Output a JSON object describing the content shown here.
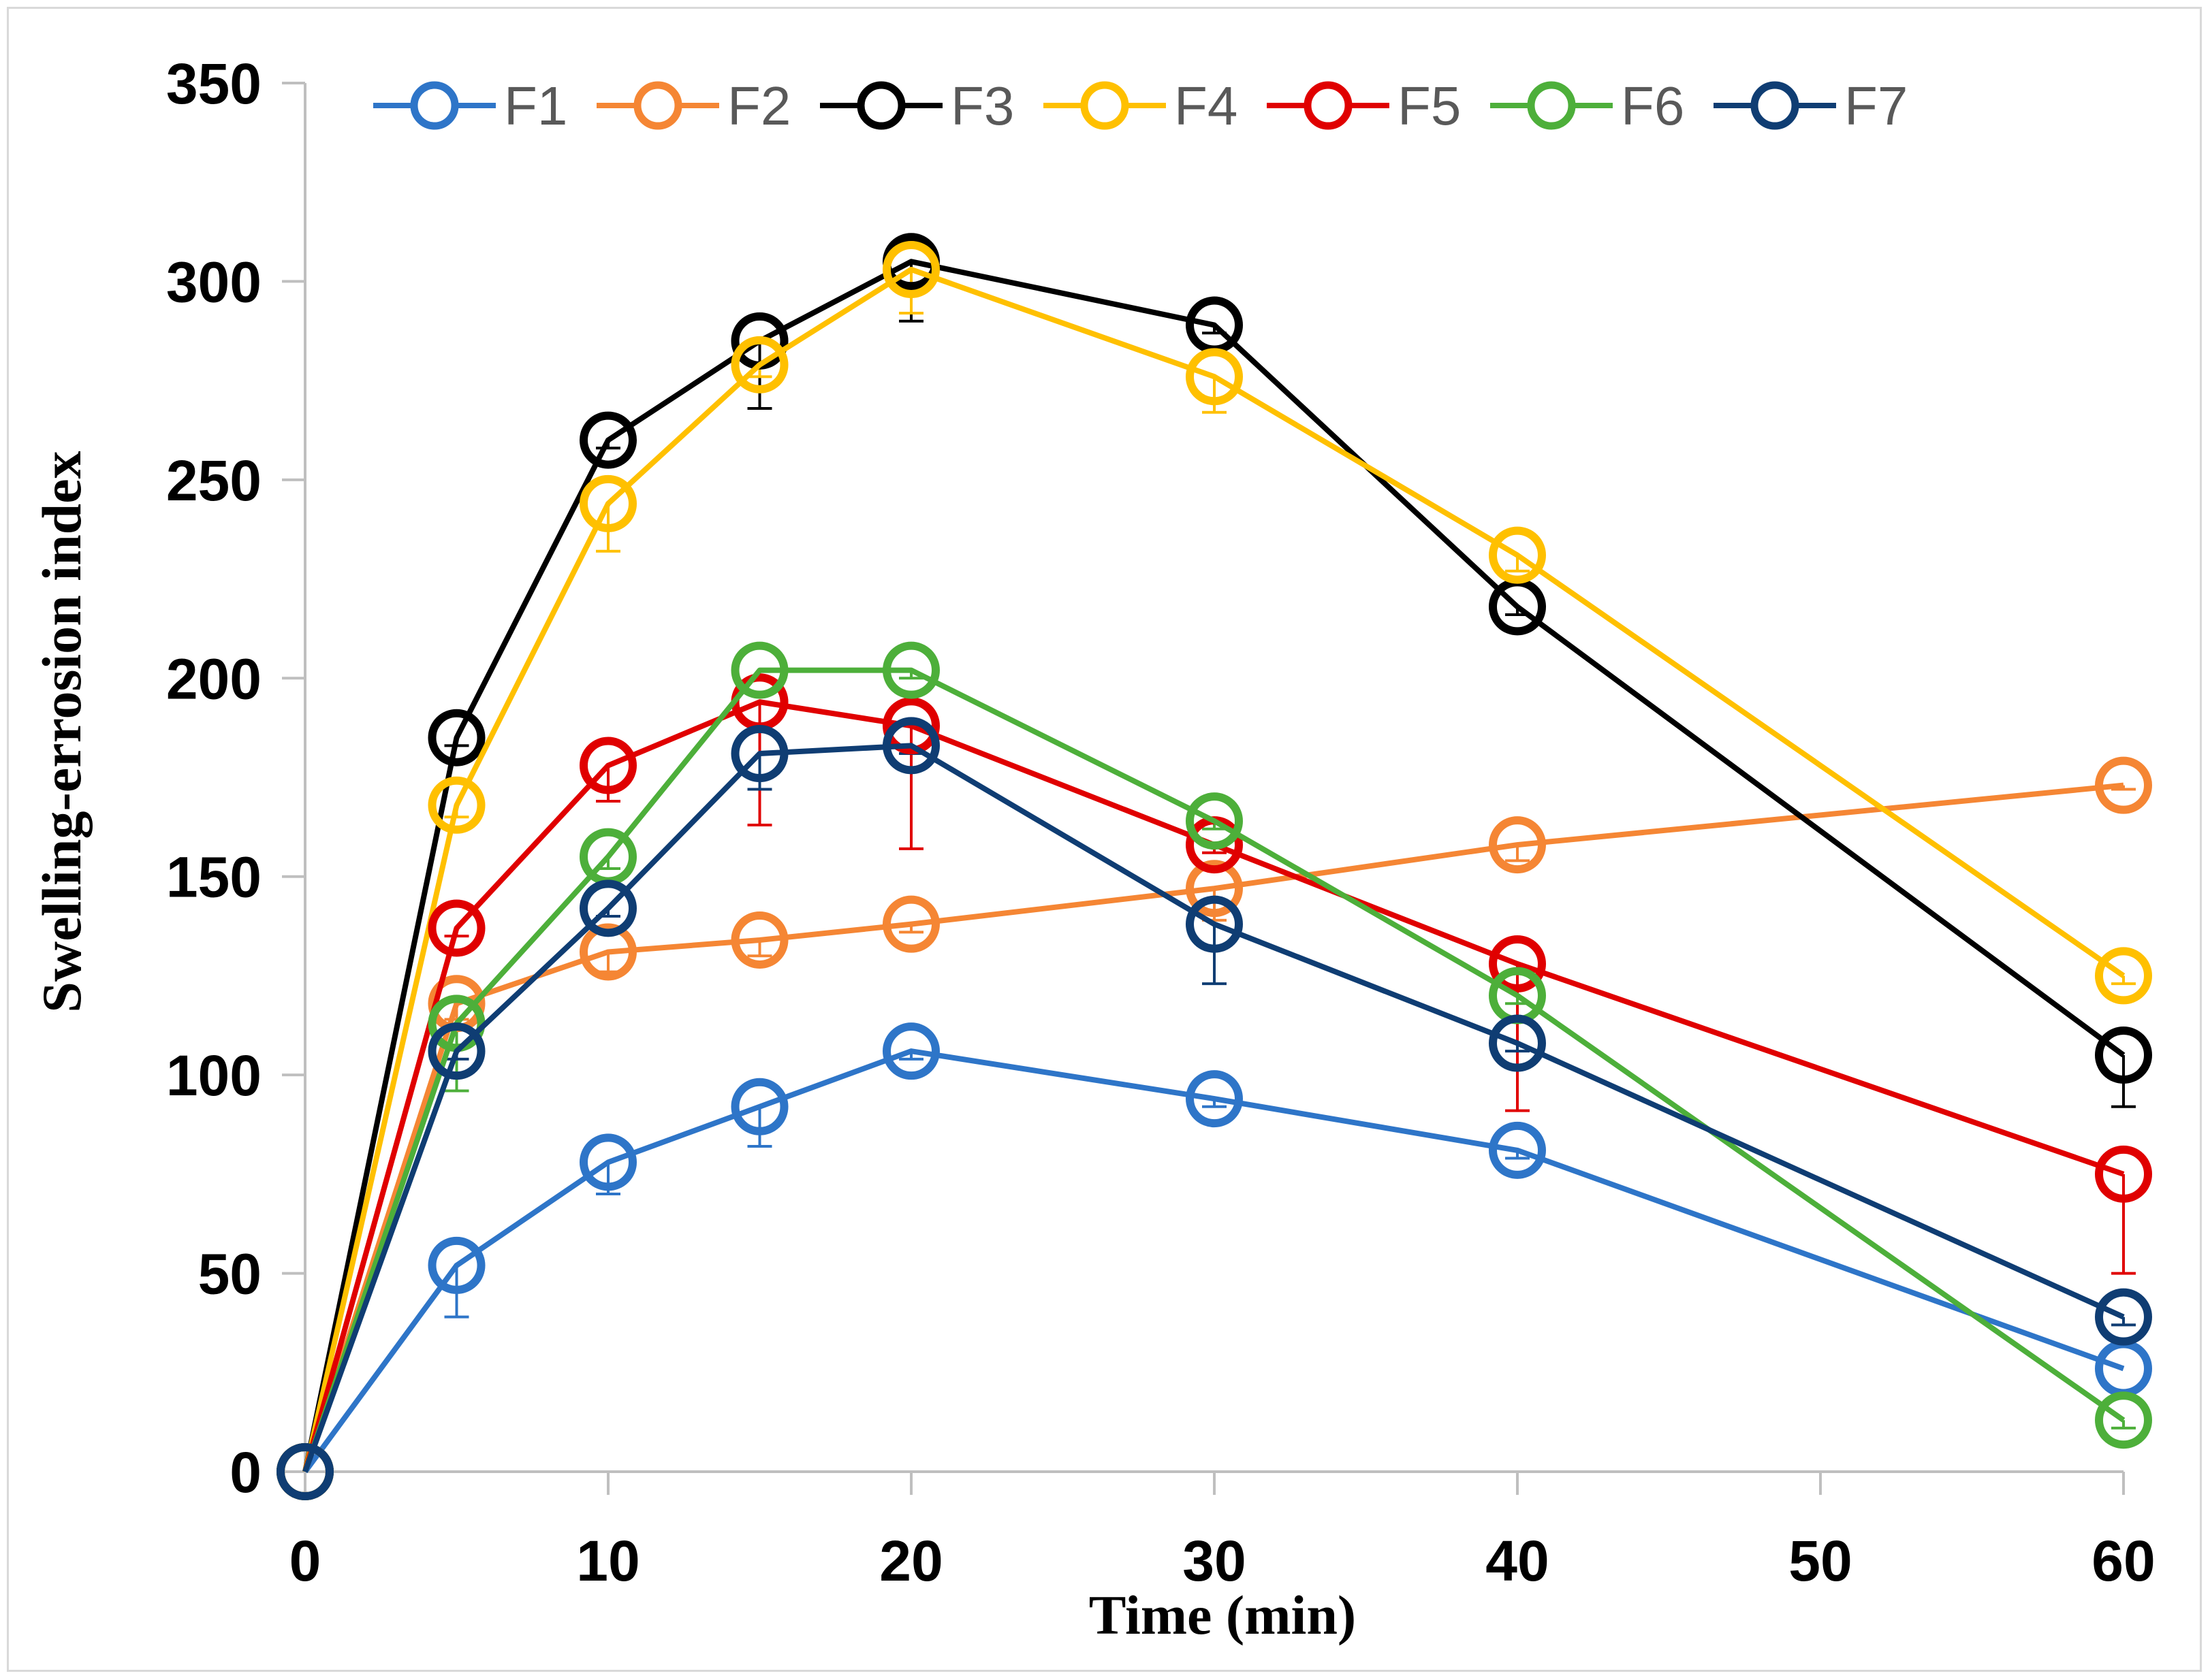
{
  "chart_data": {
    "type": "line",
    "title": "",
    "xlabel": "Time (min)",
    "ylabel": "Swelling-errosion index",
    "xlim": [
      0,
      60
    ],
    "ylim": [
      0,
      350
    ],
    "xticks": [
      0,
      10,
      20,
      30,
      40,
      50,
      60
    ],
    "yticks": [
      0,
      50,
      100,
      150,
      200,
      250,
      300,
      350
    ],
    "grid": false,
    "legend_position": "top",
    "x": [
      0,
      5,
      10,
      15,
      20,
      30,
      40,
      60
    ],
    "series": [
      {
        "name": "F1",
        "color": "#2e75c8",
        "values": [
          0,
          52,
          78,
          92,
          106,
          94,
          81,
          26
        ],
        "error": [
          0,
          13,
          8,
          10,
          2,
          2,
          2,
          0
        ]
      },
      {
        "name": "F2",
        "color": "#f58634",
        "values": [
          0,
          118,
          131,
          134,
          138,
          147,
          158,
          173
        ],
        "error": [
          0,
          4,
          5,
          4,
          2,
          8,
          4,
          1
        ]
      },
      {
        "name": "F3",
        "color": "#000000",
        "values": [
          0,
          185,
          260,
          285,
          305,
          289,
          218,
          105
        ],
        "error": [
          0,
          2,
          2,
          17,
          15,
          2,
          2,
          13
        ]
      },
      {
        "name": "F4",
        "color": "#ffc000",
        "values": [
          0,
          168,
          244,
          279,
          303,
          276,
          231,
          125
        ],
        "error": [
          0,
          3,
          12,
          3,
          11,
          9,
          4,
          2
        ]
      },
      {
        "name": "F5",
        "color": "#e00000",
        "values": [
          0,
          137,
          178,
          194,
          188,
          158,
          128,
          75
        ],
        "error": [
          0,
          2,
          9,
          31,
          31,
          2,
          37,
          25
        ]
      },
      {
        "name": "F6",
        "color": "#4daf3a",
        "values": [
          0,
          113,
          155,
          202,
          202,
          164,
          120,
          13
        ],
        "error": [
          0,
          17,
          3,
          2,
          2,
          2,
          2,
          2
        ]
      },
      {
        "name": "F7",
        "color": "#0f3d73",
        "values": [
          0,
          106,
          142,
          181,
          183,
          138,
          108,
          39
        ],
        "error": [
          0,
          2,
          2,
          9,
          2,
          15,
          2,
          2
        ]
      }
    ]
  }
}
